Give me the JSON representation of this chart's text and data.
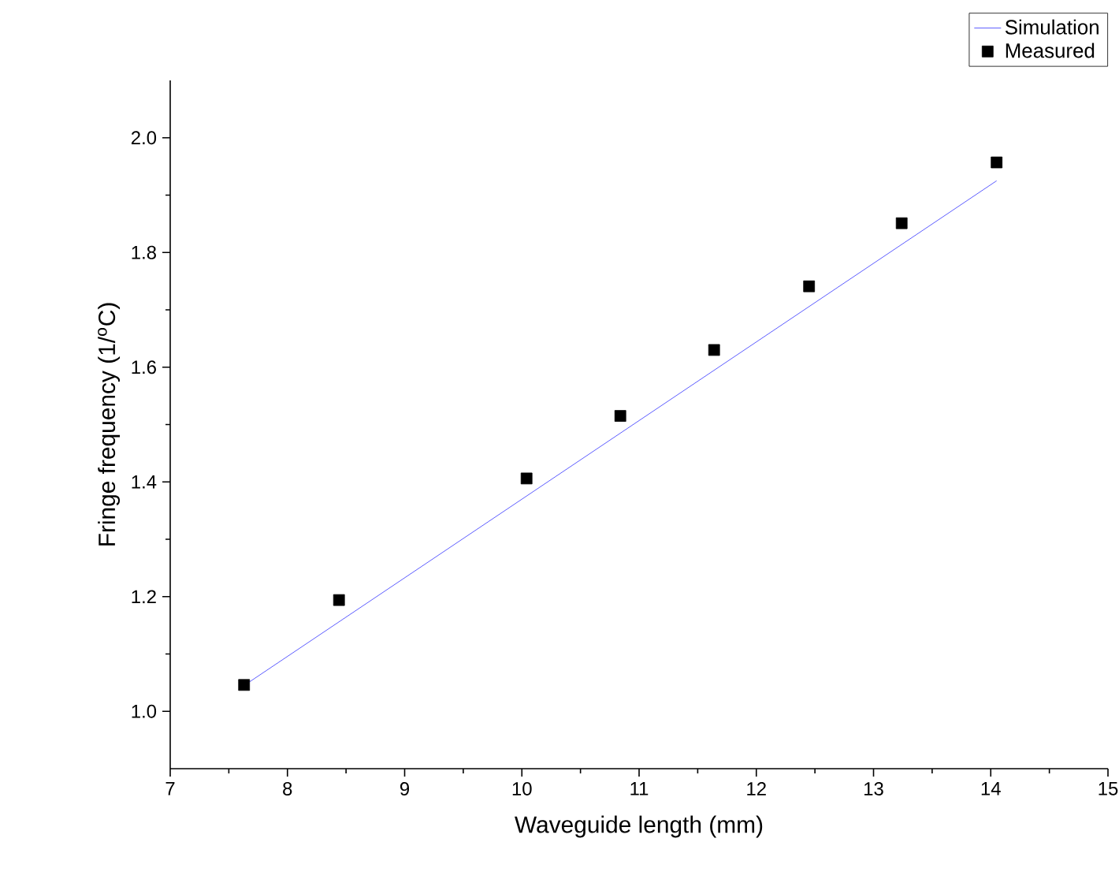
{
  "chart_data": {
    "type": "scatter",
    "xlabel": "Waveguide length (mm)",
    "ylabel": "Fringe frequency (1/$^{o}$C)",
    "xlim": [
      7,
      15
    ],
    "xticks": [
      7,
      8,
      9,
      10,
      11,
      12,
      13,
      14,
      15
    ],
    "ylim": [
      0.9,
      2.1
    ],
    "yticks": [
      {
        "value": 1.0,
        "label": "1.0"
      },
      1.2,
      1.4,
      1.6,
      1.8,
      {
        "value": 2.0,
        "label": "2.0"
      }
    ],
    "legend": "top right",
    "grid": false,
    "series": [
      {
        "name": "Simulation",
        "type": "line",
        "color": "#3333ff",
        "marker": "none",
        "line_style": "solid",
        "x": [
          7.63,
          14.05
        ],
        "values": [
          1.045,
          1.925
        ]
      },
      {
        "name": "Measured",
        "color": "#000000",
        "marker": "square",
        "x": [
          7.63,
          8.44,
          10.04,
          10.84,
          11.64,
          12.45,
          13.24,
          14.05
        ],
        "values": [
          1.046,
          1.194,
          1.406,
          1.515,
          1.63,
          1.741,
          1.851,
          1.957
        ]
      }
    ]
  }
}
